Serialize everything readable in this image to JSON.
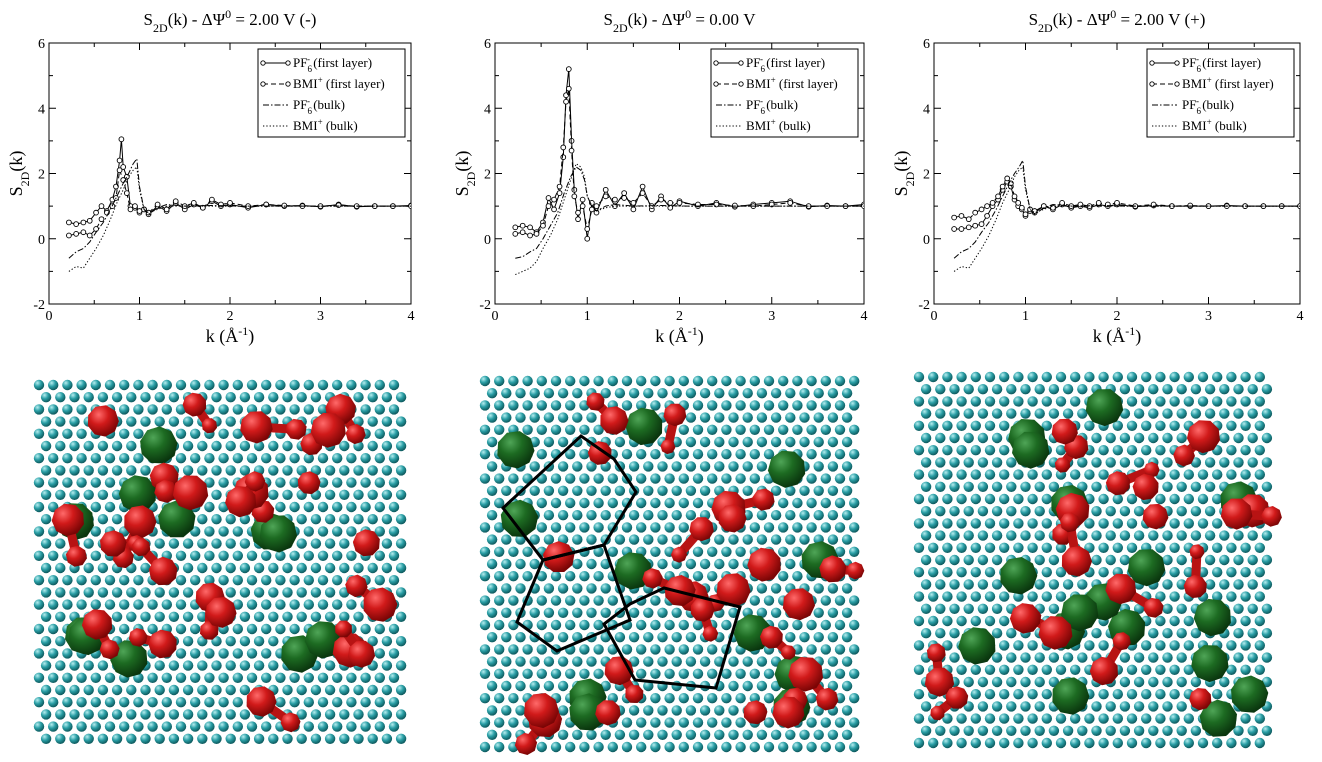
{
  "chart_data": [
    {
      "type": "line",
      "title": {
        "main": "S",
        "sub": "2D",
        "rest1": "(k) - ΔΨ",
        "sup": "0",
        "rest2": " = 2.00 V (-)"
      },
      "xlabel": {
        "pre": "k (Å",
        "sup": "-1",
        "post": ")"
      },
      "ylabel": {
        "main": "S",
        "sub": "2D",
        "rest": "(k)"
      },
      "xlim": [
        0,
        4
      ],
      "ylim": [
        -2,
        6
      ],
      "xticks": [
        "0",
        "1",
        "2",
        "3",
        "4"
      ],
      "yticks": [
        "-2",
        "0",
        "2",
        "4",
        "6"
      ],
      "grid": false,
      "legend_position": "top-right",
      "series": [
        {
          "name": {
            "base": "PF",
            "sub": "6",
            "sup": "-",
            "tail": " (first layer)"
          },
          "style": "solid",
          "marker": true,
          "x": [
            0.22,
            0.3,
            0.38,
            0.45,
            0.52,
            0.58,
            0.64,
            0.7,
            0.74,
            0.78,
            0.8,
            0.82,
            0.86,
            0.9,
            0.95,
            1.0,
            1.05,
            1.1,
            1.2,
            1.3,
            1.4,
            1.5,
            1.6,
            1.7,
            1.8,
            1.9,
            2.0,
            2.2,
            2.4,
            2.6,
            2.8,
            3.0,
            3.2,
            3.4,
            3.6,
            3.8,
            4.0
          ],
          "y": [
            0.5,
            0.45,
            0.5,
            0.55,
            0.8,
            1.0,
            0.85,
            1.2,
            1.6,
            2.4,
            3.05,
            2.2,
            1.9,
            1.0,
            0.95,
            0.8,
            0.9,
            0.75,
            1.0,
            0.85,
            1.1,
            0.9,
            1.05,
            0.95,
            1.15,
            1.0,
            1.05,
            0.95,
            1.05,
            1.0,
            1.02,
            0.98,
            1.05,
            0.98,
            1.0,
            1.0,
            1.02
          ]
        },
        {
          "name": {
            "base": "BMI",
            "sub": "",
            "sup": "+",
            "tail": " (first layer)"
          },
          "style": "dashed",
          "marker": true,
          "x": [
            0.22,
            0.3,
            0.38,
            0.45,
            0.52,
            0.58,
            0.64,
            0.7,
            0.74,
            0.78,
            0.82,
            0.86,
            0.9,
            0.95,
            1.0,
            1.05,
            1.1,
            1.2,
            1.3,
            1.4,
            1.5,
            1.6,
            1.7,
            1.8,
            1.9,
            2.0,
            2.2,
            2.4,
            2.6,
            2.8,
            3.0,
            3.2,
            3.4,
            3.6,
            3.8,
            4.0
          ],
          "y": [
            0.1,
            0.15,
            0.2,
            0.1,
            0.3,
            0.6,
            0.8,
            1.0,
            1.25,
            2.1,
            1.8,
            1.4,
            0.9,
            1.0,
            0.85,
            0.9,
            0.8,
            1.05,
            0.9,
            1.15,
            1.0,
            1.1,
            0.95,
            1.2,
            1.05,
            1.1,
            1.0,
            1.05,
            1.02,
            1.0,
            1.0,
            1.03,
            1.0,
            1.0,
            1.0,
            1.0
          ]
        },
        {
          "name": {
            "base": "PF",
            "sub": "6",
            "sup": "-",
            "tail": " (bulk)"
          },
          "style": "dashdot",
          "marker": false,
          "x": [
            0.22,
            0.3,
            0.38,
            0.45,
            0.52,
            0.6,
            0.68,
            0.75,
            0.82,
            0.88,
            0.93,
            0.97,
            1.0,
            1.05,
            1.1,
            1.2,
            1.3,
            1.5,
            1.8,
            2.1,
            2.5,
            3.0,
            3.5,
            4.0
          ],
          "y": [
            -0.6,
            -0.4,
            -0.3,
            -0.1,
            0.2,
            0.5,
            0.9,
            1.3,
            1.7,
            2.0,
            2.3,
            2.45,
            1.6,
            0.9,
            0.75,
            0.95,
            1.05,
            1.0,
            1.02,
            1.0,
            1.0,
            1.0,
            1.0,
            1.0
          ]
        },
        {
          "name": {
            "base": "BMI",
            "sub": "",
            "sup": "+",
            "tail": " (bulk)"
          },
          "style": "dotted",
          "marker": false,
          "x": [
            0.22,
            0.3,
            0.38,
            0.45,
            0.52,
            0.6,
            0.68,
            0.75,
            0.82,
            0.88,
            0.93,
            0.97,
            1.0,
            1.05,
            1.1,
            1.2,
            1.3,
            1.5,
            1.8,
            2.1,
            2.5,
            3.0,
            3.5,
            4.0
          ],
          "y": [
            -1.0,
            -0.85,
            -0.9,
            -0.6,
            -0.3,
            0.1,
            0.6,
            1.1,
            1.5,
            1.9,
            2.1,
            2.2,
            1.5,
            0.9,
            0.8,
            0.9,
            1.0,
            1.0,
            1.0,
            1.0,
            1.0,
            1.0,
            1.0,
            1.0
          ]
        }
      ]
    },
    {
      "type": "line",
      "title": {
        "main": "S",
        "sub": "2D",
        "rest1": "(k) - ΔΨ",
        "sup": "0",
        "rest2": " = 0.00 V"
      },
      "xlabel": {
        "pre": "k (Å",
        "sup": "-1",
        "post": ")"
      },
      "ylabel": {
        "main": "S",
        "sub": "2D",
        "rest": "(k)"
      },
      "xlim": [
        0,
        4
      ],
      "ylim": [
        -2,
        6
      ],
      "xticks": [
        "0",
        "1",
        "2",
        "3",
        "4"
      ],
      "yticks": [
        "-2",
        "0",
        "2",
        "4",
        "6"
      ],
      "grid": false,
      "legend_position": "top-right",
      "series": [
        {
          "name": {
            "base": "PF",
            "sub": "6",
            "sup": "-",
            "tail": " (first layer)"
          },
          "style": "solid",
          "marker": true,
          "x": [
            0.22,
            0.3,
            0.38,
            0.45,
            0.52,
            0.58,
            0.64,
            0.7,
            0.74,
            0.77,
            0.8,
            0.83,
            0.86,
            0.9,
            0.95,
            1.0,
            1.05,
            1.1,
            1.2,
            1.3,
            1.4,
            1.5,
            1.6,
            1.7,
            1.8,
            1.9,
            2.0,
            2.2,
            2.4,
            2.6,
            2.8,
            3.0,
            3.2,
            3.4,
            3.6,
            3.8,
            4.0
          ],
          "y": [
            0.35,
            0.4,
            0.35,
            0.2,
            0.5,
            1.25,
            0.9,
            1.4,
            2.5,
            4.4,
            5.2,
            3.0,
            1.5,
            0.6,
            1.2,
            0.0,
            1.1,
            0.8,
            1.5,
            1.0,
            1.4,
            0.9,
            1.6,
            0.9,
            1.3,
            0.95,
            1.15,
            1.0,
            1.1,
            0.98,
            1.05,
            1.1,
            1.15,
            0.98,
            1.02,
            1.0,
            1.05
          ]
        },
        {
          "name": {
            "base": "BMI",
            "sub": "",
            "sup": "+",
            "tail": " (first layer)"
          },
          "style": "dashed",
          "marker": true,
          "x": [
            0.22,
            0.3,
            0.38,
            0.45,
            0.52,
            0.58,
            0.64,
            0.7,
            0.74,
            0.77,
            0.8,
            0.83,
            0.86,
            0.9,
            0.95,
            1.0,
            1.05,
            1.1,
            1.2,
            1.3,
            1.4,
            1.5,
            1.6,
            1.7,
            1.8,
            1.9,
            2.0,
            2.2,
            2.4,
            2.6,
            2.8,
            3.0,
            3.2,
            3.4,
            3.6,
            3.8,
            4.0
          ],
          "y": [
            0.15,
            0.2,
            0.1,
            0.15,
            0.4,
            1.0,
            1.2,
            1.6,
            2.8,
            4.2,
            4.6,
            2.7,
            1.3,
            0.8,
            1.0,
            0.3,
            0.9,
            1.0,
            1.3,
            1.2,
            1.25,
            1.1,
            1.4,
            1.0,
            1.2,
            1.1,
            1.1,
            1.05,
            1.05,
            1.02,
            1.0,
            1.05,
            1.1,
            1.0,
            1.0,
            1.0,
            1.0
          ]
        },
        {
          "name": {
            "base": "PF",
            "sub": "6",
            "sup": "-",
            "tail": " (bulk)"
          },
          "style": "dashdot",
          "marker": false,
          "x": [
            0.22,
            0.3,
            0.38,
            0.45,
            0.52,
            0.6,
            0.68,
            0.75,
            0.82,
            0.88,
            0.93,
            0.97,
            1.0,
            1.05,
            1.1,
            1.2,
            1.3,
            1.5,
            1.8,
            2.1,
            2.5,
            3.0,
            3.5,
            4.0
          ],
          "y": [
            -0.6,
            -0.55,
            -0.4,
            -0.3,
            0.0,
            0.4,
            0.8,
            1.4,
            1.9,
            2.2,
            2.1,
            1.8,
            1.3,
            1.0,
            0.85,
            1.0,
            1.05,
            1.0,
            1.02,
            1.0,
            1.0,
            1.0,
            1.0,
            1.0
          ]
        },
        {
          "name": {
            "base": "BMI",
            "sub": "",
            "sup": "+",
            "tail": " (bulk)"
          },
          "style": "dotted",
          "marker": false,
          "x": [
            0.22,
            0.3,
            0.38,
            0.45,
            0.52,
            0.6,
            0.68,
            0.75,
            0.82,
            0.88,
            0.93,
            0.97,
            1.0,
            1.05,
            1.1,
            1.2,
            1.3,
            1.5,
            1.8,
            2.1,
            2.5,
            3.0,
            3.5,
            4.0
          ],
          "y": [
            -1.1,
            -1.0,
            -0.9,
            -0.7,
            -0.3,
            0.1,
            0.6,
            1.2,
            1.8,
            2.3,
            2.2,
            1.9,
            1.3,
            1.0,
            0.85,
            0.95,
            1.0,
            1.0,
            1.0,
            1.0,
            1.0,
            1.0,
            1.0,
            1.0
          ]
        }
      ]
    },
    {
      "type": "line",
      "title": {
        "main": "S",
        "sub": "2D",
        "rest1": "(k) - ΔΨ",
        "sup": "0",
        "rest2": " = 2.00 V (+)"
      },
      "xlabel": {
        "pre": "k (Å",
        "sup": "-1",
        "post": ")"
      },
      "ylabel": {
        "main": "S",
        "sub": "2D",
        "rest": "(k)"
      },
      "xlim": [
        0,
        4
      ],
      "ylim": [
        -2,
        6
      ],
      "xticks": [
        "0",
        "1",
        "2",
        "3",
        "4"
      ],
      "yticks": [
        "-2",
        "0",
        "2",
        "4",
        "6"
      ],
      "grid": false,
      "legend_position": "top-right",
      "series": [
        {
          "name": {
            "base": "PF",
            "sub": "6",
            "sup": "-",
            "tail": " (first layer)"
          },
          "style": "solid",
          "marker": true,
          "x": [
            0.22,
            0.3,
            0.38,
            0.45,
            0.52,
            0.58,
            0.64,
            0.7,
            0.75,
            0.8,
            0.84,
            0.88,
            0.92,
            0.96,
            1.0,
            1.05,
            1.1,
            1.2,
            1.3,
            1.4,
            1.5,
            1.6,
            1.7,
            1.8,
            1.9,
            2.0,
            2.2,
            2.4,
            2.6,
            2.8,
            3.0,
            3.2,
            3.4,
            3.6,
            3.8,
            4.0
          ],
          "y": [
            0.3,
            0.3,
            0.35,
            0.4,
            0.45,
            0.7,
            1.0,
            1.2,
            1.5,
            1.75,
            1.6,
            1.2,
            1.0,
            0.9,
            0.7,
            0.85,
            0.8,
            1.0,
            0.9,
            1.05,
            0.95,
            1.0,
            0.95,
            1.05,
            1.0,
            1.05,
            0.98,
            1.02,
            1.0,
            1.0,
            1.0,
            1.02,
            1.0,
            1.0,
            1.0,
            1.0
          ]
        },
        {
          "name": {
            "base": "BMI",
            "sub": "",
            "sup": "+",
            "tail": " (first layer)"
          },
          "style": "dashed",
          "marker": true,
          "x": [
            0.22,
            0.3,
            0.38,
            0.45,
            0.52,
            0.58,
            0.64,
            0.7,
            0.75,
            0.8,
            0.84,
            0.88,
            0.92,
            0.96,
            1.0,
            1.05,
            1.1,
            1.2,
            1.3,
            1.4,
            1.5,
            1.6,
            1.7,
            1.8,
            1.9,
            2.0,
            2.2,
            2.4,
            2.6,
            2.8,
            3.0,
            3.2,
            3.4,
            3.6,
            3.8,
            4.0
          ],
          "y": [
            0.65,
            0.7,
            0.6,
            0.8,
            0.9,
            1.0,
            1.1,
            1.3,
            1.6,
            1.85,
            1.7,
            1.3,
            1.1,
            0.95,
            0.75,
            0.9,
            0.85,
            1.0,
            0.95,
            1.1,
            1.0,
            1.05,
            1.0,
            1.1,
            1.05,
            1.1,
            1.0,
            1.05,
            1.0,
            1.02,
            1.0,
            1.0,
            1.0,
            1.0,
            1.0,
            1.0
          ]
        },
        {
          "name": {
            "base": "PF",
            "sub": "6",
            "sup": "-",
            "tail": " (bulk)"
          },
          "style": "dashdot",
          "marker": false,
          "x": [
            0.22,
            0.3,
            0.38,
            0.45,
            0.52,
            0.6,
            0.68,
            0.75,
            0.82,
            0.88,
            0.93,
            0.97,
            1.0,
            1.05,
            1.1,
            1.2,
            1.3,
            1.5,
            1.8,
            2.1,
            2.5,
            3.0,
            3.5,
            4.0
          ],
          "y": [
            -0.6,
            -0.4,
            -0.3,
            -0.1,
            0.2,
            0.5,
            0.9,
            1.3,
            1.7,
            2.0,
            2.2,
            2.4,
            1.6,
            0.9,
            0.75,
            0.95,
            1.05,
            1.0,
            1.02,
            1.0,
            1.0,
            1.0,
            1.0,
            1.0
          ]
        },
        {
          "name": {
            "base": "BMI",
            "sub": "",
            "sup": "+",
            "tail": " (bulk)"
          },
          "style": "dotted",
          "marker": false,
          "x": [
            0.22,
            0.3,
            0.38,
            0.45,
            0.52,
            0.6,
            0.68,
            0.75,
            0.82,
            0.88,
            0.93,
            0.97,
            1.0,
            1.05,
            1.1,
            1.2,
            1.3,
            1.5,
            1.8,
            2.1,
            2.5,
            3.0,
            3.5,
            4.0
          ],
          "y": [
            -1.0,
            -0.85,
            -0.9,
            -0.6,
            -0.3,
            0.1,
            0.6,
            1.1,
            1.5,
            1.9,
            2.1,
            2.2,
            1.5,
            0.9,
            0.8,
            0.9,
            1.0,
            1.0,
            1.0,
            1.0,
            1.0,
            1.0,
            1.0,
            1.0
          ]
        }
      ]
    }
  ],
  "snapshots": {
    "colors": {
      "substrate": "#2a9fa6",
      "cation": "#d11a1a",
      "anion": "#1d6b22",
      "outline": "#000000"
    },
    "items": [
      {
        "name": "first-layer-snapshot-left",
        "panel": 0
      },
      {
        "name": "first-layer-snapshot-center",
        "panel": 1
      },
      {
        "name": "first-layer-snapshot-right",
        "panel": 2
      }
    ]
  }
}
